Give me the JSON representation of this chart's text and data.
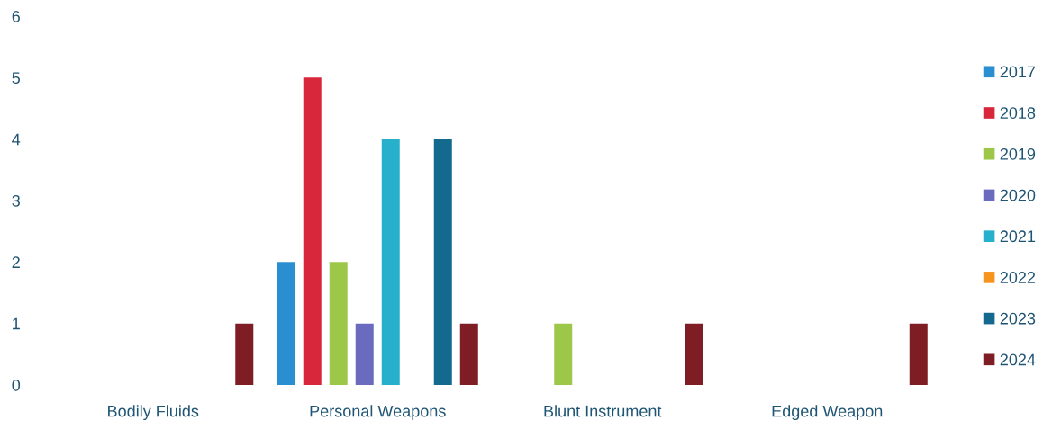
{
  "chart_data": {
    "type": "bar",
    "categories": [
      "Bodily Fluids",
      "Personal Weapons",
      "Blunt Instrument",
      "Edged Weapon"
    ],
    "series": [
      {
        "name": "2017",
        "color": "#2a8fd0",
        "values": [
          null,
          2,
          null,
          null
        ]
      },
      {
        "name": "2018",
        "color": "#d8263a",
        "values": [
          null,
          5,
          null,
          null
        ]
      },
      {
        "name": "2019",
        "color": "#9cc748",
        "values": [
          null,
          2,
          1,
          null
        ]
      },
      {
        "name": "2020",
        "color": "#6a6bbf",
        "values": [
          null,
          1,
          null,
          null
        ]
      },
      {
        "name": "2021",
        "color": "#27b0cc",
        "values": [
          null,
          4,
          null,
          null
        ]
      },
      {
        "name": "2022",
        "color": "#f7941d",
        "values": [
          null,
          null,
          null,
          null
        ]
      },
      {
        "name": "2023",
        "color": "#14698f",
        "values": [
          null,
          4,
          null,
          null
        ]
      },
      {
        "name": "2024",
        "color": "#7f1d24",
        "values": [
          1,
          1,
          1,
          1
        ]
      }
    ],
    "ylim": [
      0,
      6
    ],
    "yticks": [
      0,
      1,
      2,
      3,
      4,
      5,
      6
    ],
    "grid": false,
    "legend": "right"
  }
}
